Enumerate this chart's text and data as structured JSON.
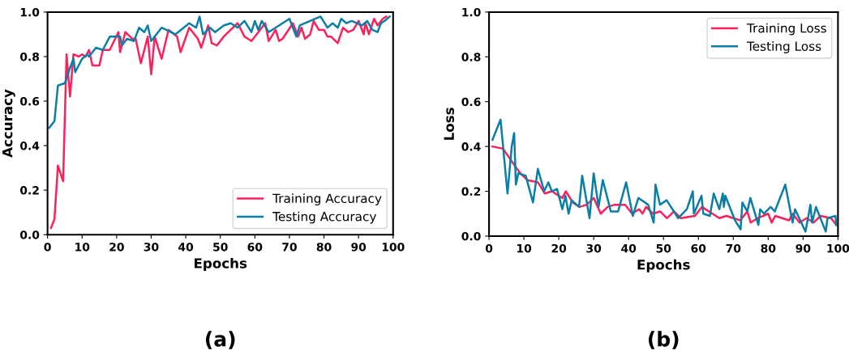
{
  "chart_data": [
    {
      "type": "line",
      "xlabel": "Epochs",
      "ylabel": "Accuracy",
      "annotations": [
        "(a)"
      ],
      "legend": "bottom right",
      "grid": false,
      "xlim": [
        0,
        100
      ],
      "xticks": [
        0,
        10,
        20,
        30,
        40,
        50,
        60,
        70,
        80,
        90,
        100
      ],
      "ylim": [
        0,
        1
      ],
      "yticks": [
        {
          "value": 0,
          "label": "0.0"
        },
        {
          "value": 0.2,
          "label": "0.2"
        },
        {
          "value": 0.4,
          "label": "0.4"
        },
        {
          "value": 0.6,
          "label": "0.6"
        },
        {
          "value": 0.8,
          "label": "0.8"
        },
        {
          "value": 1,
          "label": "1.0"
        }
      ],
      "series": [
        {
          "name": "Training Accuracy",
          "color": "#ff1f5b",
          "x": [
            1,
            2,
            3,
            4.5,
            5.5,
            6.5,
            7.5,
            9,
            10,
            11,
            12,
            13,
            15,
            16,
            18,
            20.5,
            21,
            22.5,
            24.5,
            25.5,
            27,
            29,
            30,
            31,
            33,
            35,
            37.5,
            38.5,
            41,
            43.5,
            44.5,
            46.5,
            47.5,
            49,
            51,
            55,
            57,
            59,
            61,
            63,
            64,
            66,
            67,
            68,
            71,
            72.5,
            73.5,
            74.5,
            76,
            77,
            78.5,
            80,
            81,
            82,
            84,
            85.5,
            87,
            88.5,
            90,
            91.5,
            92,
            93,
            94.5,
            95.5,
            97,
            98
          ],
          "values": [
            0.03,
            0.07,
            0.31,
            0.24,
            0.81,
            0.62,
            0.81,
            0.8,
            0.81,
            0.8,
            0.83,
            0.76,
            0.76,
            0.83,
            0.83,
            0.91,
            0.82,
            0.91,
            0.88,
            0.88,
            0.77,
            0.89,
            0.72,
            0.89,
            0.79,
            0.92,
            0.89,
            0.82,
            0.93,
            0.88,
            0.84,
            0.94,
            0.86,
            0.85,
            0.89,
            0.95,
            0.89,
            0.87,
            0.91,
            0.95,
            0.87,
            0.92,
            0.87,
            0.88,
            0.95,
            0.89,
            0.93,
            0.88,
            0.9,
            0.96,
            0.92,
            0.92,
            0.89,
            0.89,
            0.86,
            0.93,
            0.91,
            0.92,
            0.96,
            0.9,
            0.95,
            0.9,
            0.97,
            0.94,
            0.97,
            0.98
          ]
        },
        {
          "name": "Testing Accuracy",
          "color": "#0a7ea4",
          "x": [
            0.5,
            2,
            3,
            5,
            6.5,
            7.5,
            8,
            10,
            11.5,
            12,
            14,
            16,
            18,
            21,
            21.5,
            23,
            25,
            26.5,
            28,
            29,
            30,
            33,
            37,
            41,
            43,
            44,
            45,
            47,
            48.5,
            51,
            53,
            55,
            57,
            59,
            60,
            61,
            62,
            64,
            70,
            72,
            73,
            79,
            81,
            82.5,
            84,
            85,
            86.5,
            88,
            91,
            92.5,
            94,
            95.5,
            96.5,
            97.5,
            99
          ],
          "values": [
            0.48,
            0.51,
            0.67,
            0.68,
            0.75,
            0.79,
            0.73,
            0.79,
            0.81,
            0.8,
            0.84,
            0.83,
            0.89,
            0.89,
            0.85,
            0.88,
            0.87,
            0.93,
            0.91,
            0.94,
            0.87,
            0.93,
            0.9,
            0.95,
            0.93,
            0.98,
            0.9,
            0.93,
            0.91,
            0.94,
            0.95,
            0.93,
            0.96,
            0.91,
            0.96,
            0.92,
            0.96,
            0.91,
            0.97,
            0.89,
            0.94,
            0.98,
            0.93,
            0.95,
            0.93,
            0.97,
            0.95,
            0.96,
            0.94,
            0.96,
            0.92,
            0.91,
            0.95,
            0.96,
            0.98
          ]
        }
      ]
    },
    {
      "type": "line",
      "xlabel": "Epochs",
      "ylabel": "Loss",
      "annotations": [
        "(b)"
      ],
      "legend": "top right",
      "grid": false,
      "xlim": [
        0,
        100
      ],
      "xticks": [
        0,
        10,
        20,
        30,
        40,
        50,
        60,
        70,
        80,
        90,
        100
      ],
      "ylim": [
        0,
        1
      ],
      "yticks": [
        {
          "value": 0,
          "label": "0.0"
        },
        {
          "value": 0.2,
          "label": "0.2"
        },
        {
          "value": 0.4,
          "label": "0.4"
        },
        {
          "value": 0.6,
          "label": "0.6"
        },
        {
          "value": 0.8,
          "label": "0.8"
        },
        {
          "value": 1,
          "label": "1.0"
        }
      ],
      "series": [
        {
          "name": "Training Loss",
          "color": "#ff1f5b",
          "x": [
            1,
            4,
            8,
            9,
            11,
            14,
            16,
            18,
            21,
            22,
            24,
            26,
            28,
            30,
            32,
            34,
            36,
            39,
            41,
            43,
            44,
            45,
            47,
            49,
            51,
            53,
            55,
            59,
            61,
            65,
            66,
            68,
            70,
            72,
            74,
            75,
            77,
            80,
            81,
            82,
            86,
            87,
            89,
            91,
            93,
            95,
            98,
            99.5
          ],
          "values": [
            0.4,
            0.39,
            0.3,
            0.28,
            0.25,
            0.24,
            0.19,
            0.2,
            0.17,
            0.2,
            0.15,
            0.13,
            0.14,
            0.17,
            0.1,
            0.13,
            0.14,
            0.14,
            0.1,
            0.12,
            0.1,
            0.13,
            0.1,
            0.11,
            0.08,
            0.11,
            0.08,
            0.09,
            0.13,
            0.09,
            0.08,
            0.09,
            0.08,
            0.07,
            0.11,
            0.06,
            0.08,
            0.1,
            0.06,
            0.09,
            0.07,
            0.1,
            0.06,
            0.08,
            0.06,
            0.09,
            0.08,
            0.05
          ]
        },
        {
          "name": "Testing Loss",
          "color": "#0a7ea4",
          "x": [
            1,
            3.3,
            5.3,
            6.5,
            7.2,
            7.7,
            8.4,
            10.5,
            12.6,
            14,
            15.8,
            17,
            18,
            19.5,
            21,
            21.9,
            22.8,
            23.7,
            25.8,
            26.7,
            28.8,
            30,
            31.4,
            32.6,
            34.9,
            37,
            39.3,
            41.2,
            42.8,
            45.6,
            47.2,
            47.7,
            49,
            50.9,
            54.2,
            56.7,
            58.4,
            58.7,
            60.9,
            61.4,
            63.3,
            64.4,
            66,
            67,
            67.3,
            67.7,
            70.5,
            72.1,
            72.6,
            74,
            74.9,
            77.2,
            77.7,
            78.8,
            80.7,
            81.9,
            84.9,
            87,
            87.7,
            90.7,
            92.1,
            92.6,
            93.7,
            96.5,
            97,
            99.3,
            99.5
          ],
          "values": [
            0.43,
            0.52,
            0.19,
            0.4,
            0.46,
            0.23,
            0.28,
            0.27,
            0.15,
            0.3,
            0.2,
            0.24,
            0.2,
            0.21,
            0.12,
            0.18,
            0.1,
            0.16,
            0.13,
            0.27,
            0.08,
            0.28,
            0.13,
            0.25,
            0.11,
            0.11,
            0.24,
            0.09,
            0.17,
            0.14,
            0.06,
            0.23,
            0.14,
            0.16,
            0.08,
            0.12,
            0.2,
            0.1,
            0.18,
            0.1,
            0.09,
            0.19,
            0.12,
            0.19,
            0.13,
            0.18,
            0.07,
            0.03,
            0.15,
            0.11,
            0.17,
            0.05,
            0.12,
            0.1,
            0.13,
            0.11,
            0.23,
            0.06,
            0.12,
            0.02,
            0.14,
            0.06,
            0.13,
            0.02,
            0.08,
            0.09,
            0.05
          ]
        }
      ]
    }
  ]
}
